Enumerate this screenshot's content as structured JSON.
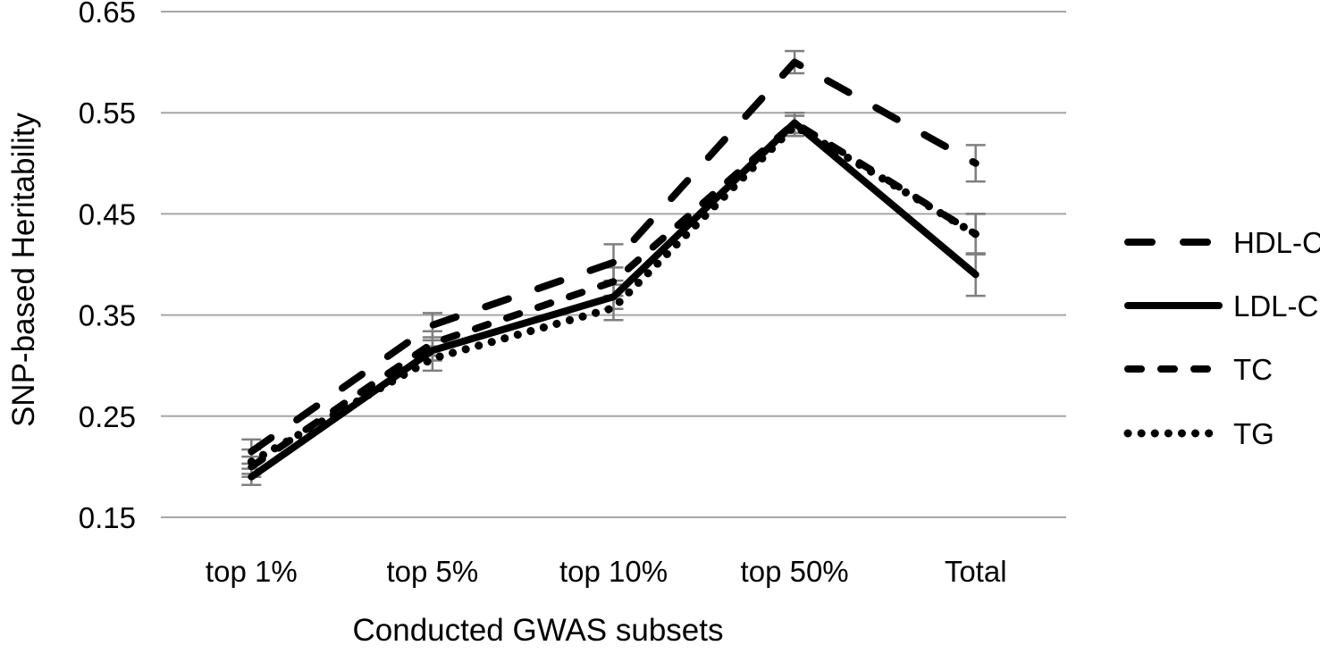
{
  "chart_data": {
    "type": "line",
    "title": "",
    "xlabel": "Conducted GWAS subsets",
    "ylabel": "SNP-based Heritability",
    "categories": [
      "top 1%",
      "top 5%",
      "top 10%",
      "top 50%",
      "Total"
    ],
    "ylim": [
      0.15,
      0.65
    ],
    "yticks": [
      0.65,
      0.55,
      0.45,
      0.35,
      0.25,
      0.15
    ],
    "ytick_labels": [
      "0.65",
      "0.55",
      "0.45",
      "0.35",
      "0.25",
      "0.15"
    ],
    "grid": "horizontal-only",
    "legend_position": "right",
    "has_error_bars": true,
    "colors": {
      "line": "#000000",
      "gridline": "#a6a6a6",
      "error_bar": "#7f7f7f",
      "text": "#000000"
    },
    "series": [
      {
        "name": "HDL-C",
        "style": "long-dash",
        "dash": "27 35",
        "stroke_width": 8,
        "values": [
          0.215,
          0.34,
          0.402,
          0.6,
          0.5
        ],
        "errors": [
          0.012,
          0.012,
          0.018,
          0.011,
          0.018
        ]
      },
      {
        "name": "LDL-C",
        "style": "solid",
        "dash": "",
        "stroke_width": 8,
        "values": [
          0.19,
          0.315,
          0.368,
          0.54,
          0.39
        ],
        "errors": [
          0.008,
          0.01,
          0.012,
          0.01,
          0.021
        ]
      },
      {
        "name": "TC",
        "style": "dash",
        "dash": "15 22",
        "stroke_width": 8,
        "values": [
          0.2,
          0.322,
          0.383,
          0.54,
          0.43
        ],
        "errors": [
          0.01,
          0.012,
          0.014,
          0.01,
          0.02
        ]
      },
      {
        "name": "TG",
        "style": "dotted",
        "dash": "0.1 15",
        "stroke_width": 9,
        "values": [
          0.205,
          0.307,
          0.357,
          0.537,
          0.43
        ],
        "errors": [
          0.012,
          0.012,
          0.012,
          0.01,
          0.02
        ]
      }
    ]
  }
}
